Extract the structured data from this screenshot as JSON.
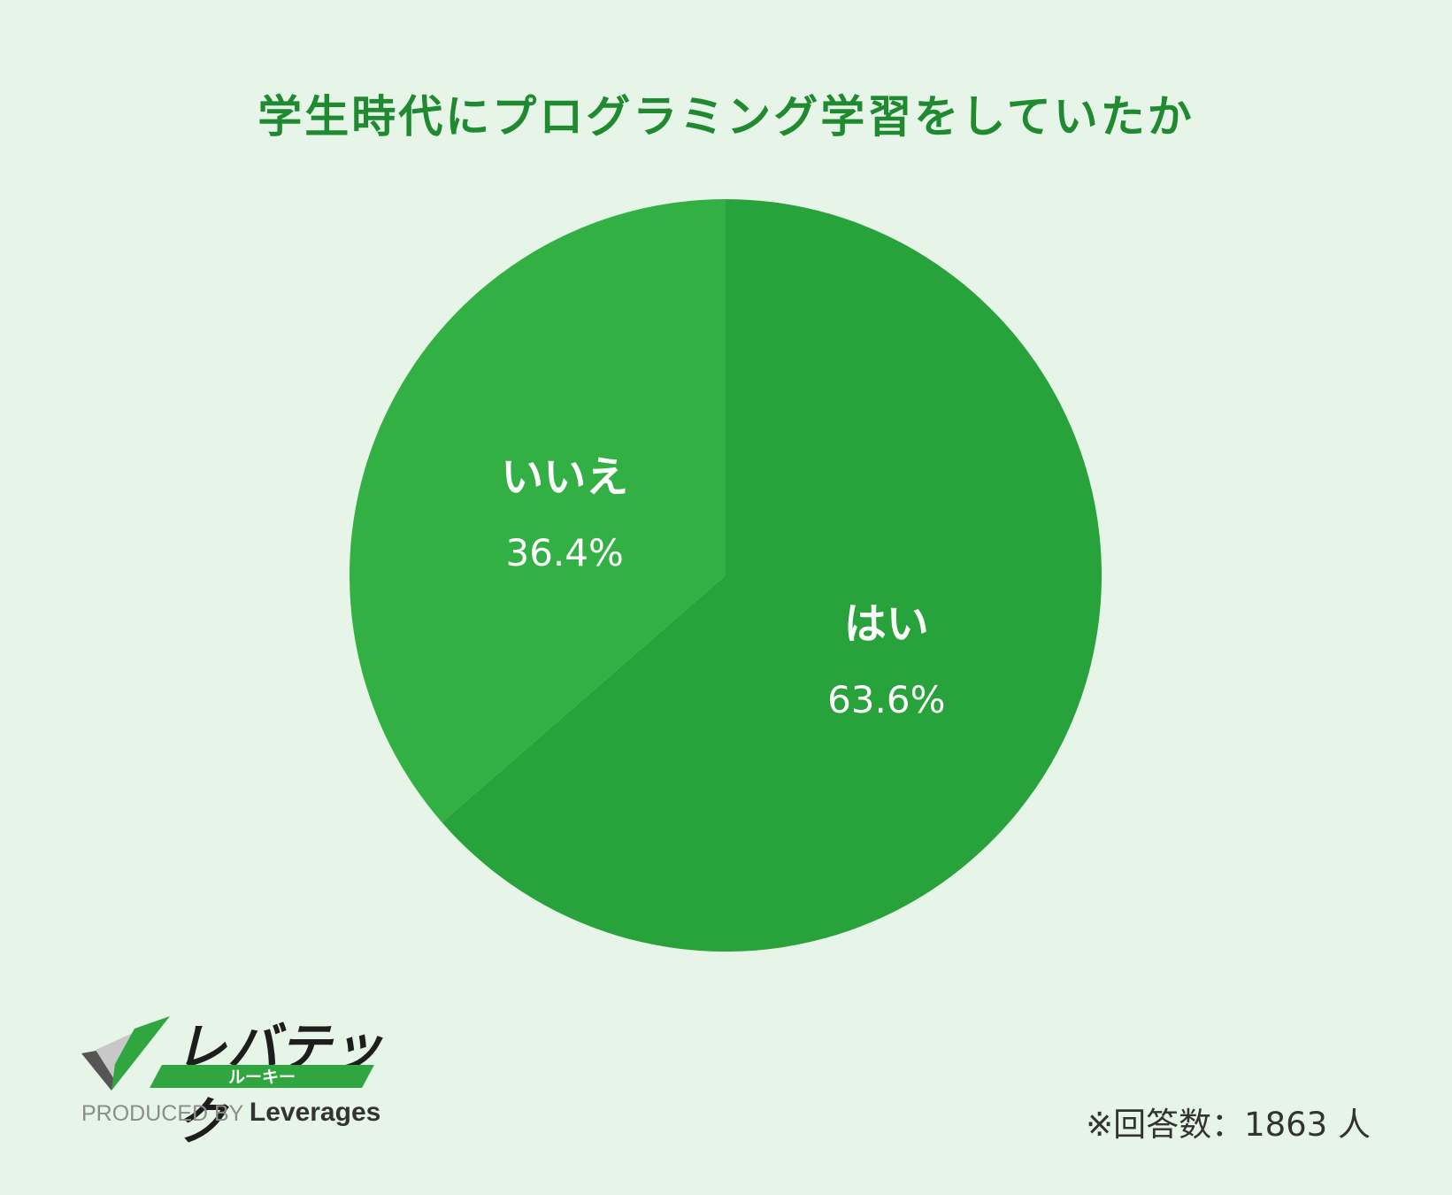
{
  "title": "学生時代にプログラミング学習をしていたか",
  "chart_data": {
    "type": "pie",
    "title": "学生時代にプログラミング学習をしていたか",
    "slices": [
      {
        "label": "はい",
        "value": 63.6,
        "display": "63.6%",
        "color": "#28a23a"
      },
      {
        "label": "いいえ",
        "value": 36.4,
        "display": "36.4%",
        "color": "#33b043"
      }
    ],
    "start_angle": "12 o'clock",
    "direction": "clockwise"
  },
  "logo": {
    "name": "レバテック",
    "sub": "ルーキー",
    "produced_by": "PRODUCED BY",
    "company": "Leverages"
  },
  "note": "※回答数：1863 人"
}
